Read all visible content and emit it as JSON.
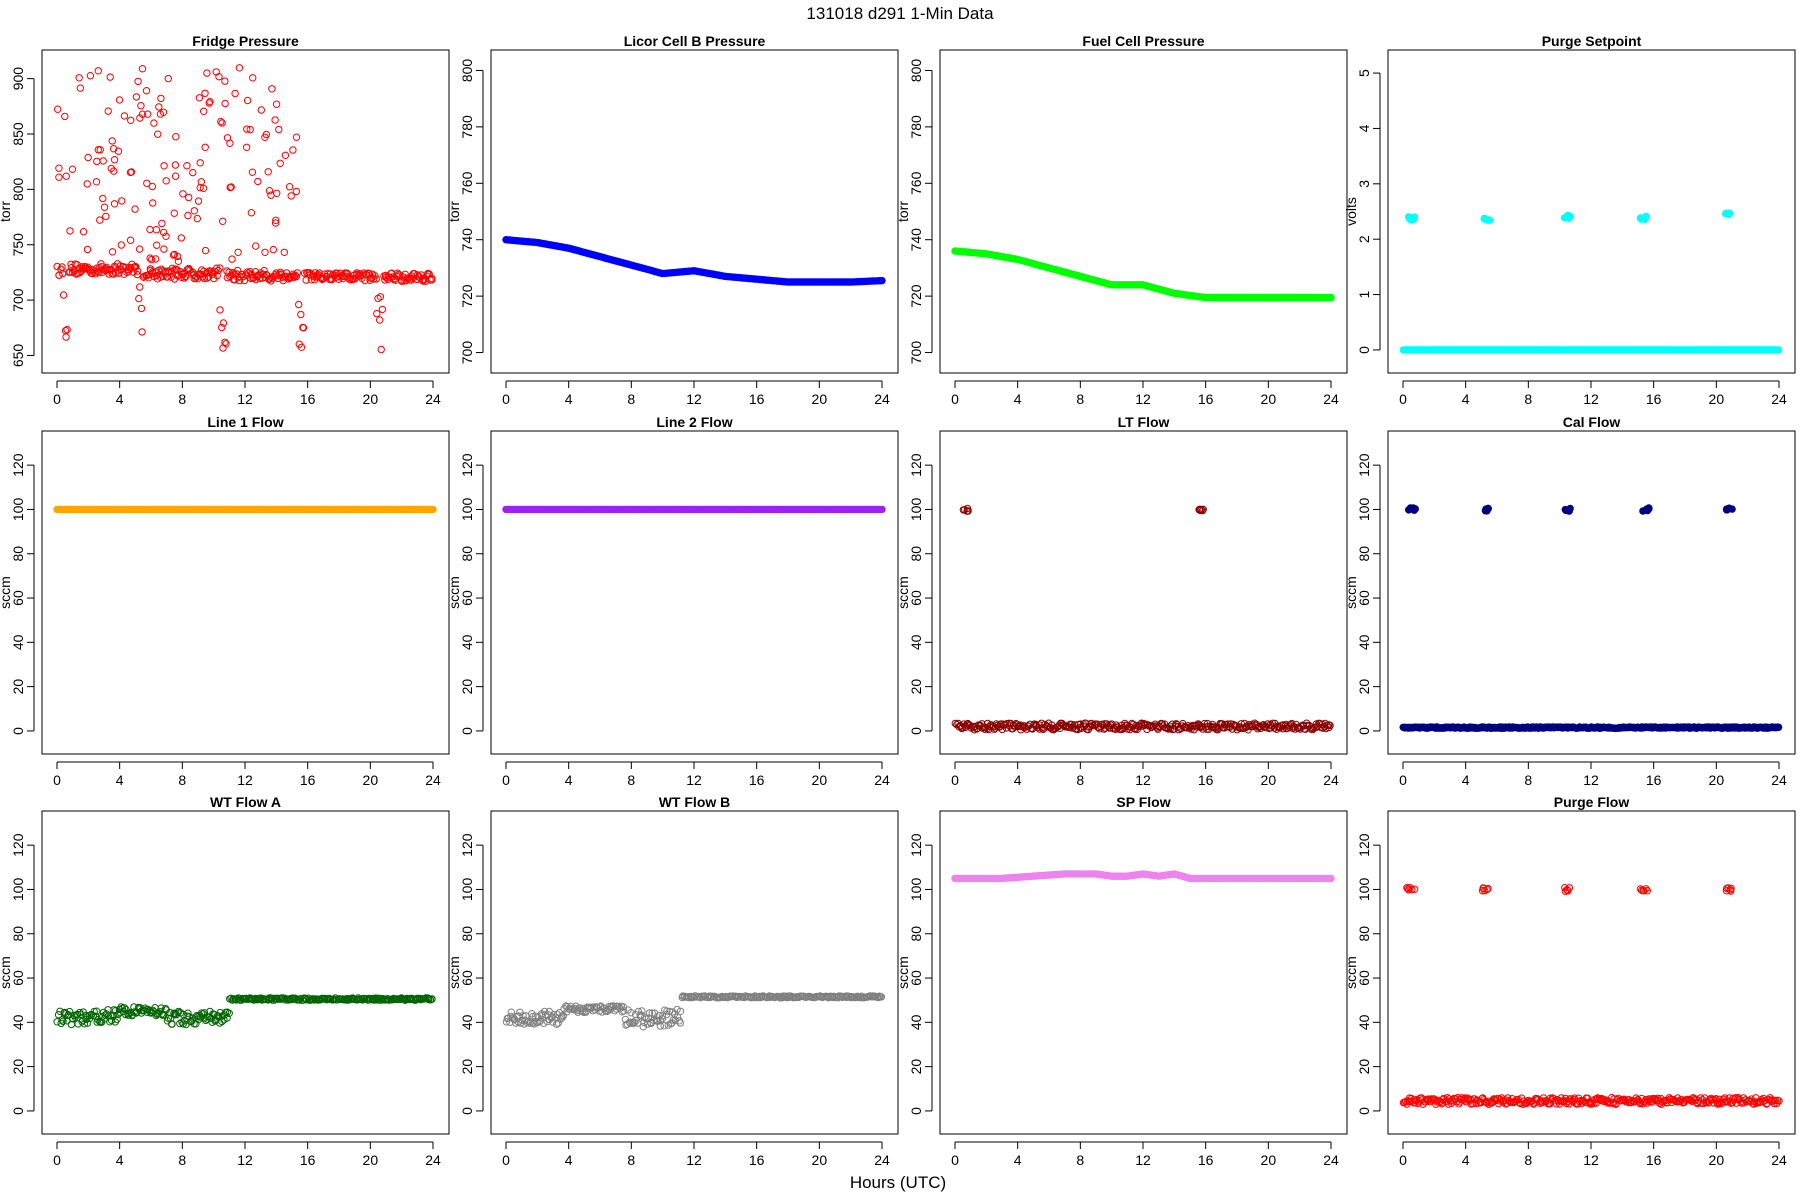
{
  "figure": {
    "title": "131018   d291   1-Min Data",
    "xlabel": "Hours (UTC)"
  },
  "chart_data": [
    {
      "type": "scatter",
      "title": "Fridge Pressure",
      "ylabel": "torr",
      "color": "#ff0000",
      "filled": false,
      "xlim": [
        0,
        24
      ],
      "xticks": [
        0,
        4,
        8,
        12,
        16,
        20,
        24
      ],
      "ylim": [
        645,
        915
      ],
      "yticks": [
        650,
        700,
        750,
        800,
        850,
        900
      ],
      "segments": [
        {
          "x0": 0,
          "x1": 0.4,
          "base": 727,
          "noise": 5
        },
        {
          "x0": 0.4,
          "x1": 0.7,
          "base": 690,
          "noise": 25
        },
        {
          "x0": 0.7,
          "x1": 5.2,
          "base": 728,
          "noise": 5
        },
        {
          "x0": 5.2,
          "x1": 5.5,
          "base": 690,
          "noise": 25
        },
        {
          "x0": 5.5,
          "x1": 10.4,
          "base": 724,
          "noise": 5
        },
        {
          "x0": 10.4,
          "x1": 10.8,
          "base": 680,
          "noise": 25
        },
        {
          "x0": 10.8,
          "x1": 15.4,
          "base": 722,
          "noise": 5
        },
        {
          "x0": 15.4,
          "x1": 15.8,
          "base": 680,
          "noise": 25
        },
        {
          "x0": 15.8,
          "x1": 20.4,
          "base": 721,
          "noise": 4
        },
        {
          "x0": 20.4,
          "x1": 20.8,
          "base": 680,
          "noise": 25
        },
        {
          "x0": 20.8,
          "x1": 24,
          "base": 721,
          "noise": 4
        }
      ],
      "scatter_cloud": {
        "x0": 0,
        "x1": 15.5,
        "ymin": 735,
        "ymax": 910
      }
    },
    {
      "type": "line",
      "title": "Licor Cell B Pressure",
      "ylabel": "torr",
      "color": "#0000ff",
      "filled": true,
      "xlim": [
        0,
        24
      ],
      "xticks": [
        0,
        4,
        8,
        12,
        16,
        20,
        24
      ],
      "ylim": [
        697,
        803
      ],
      "yticks": [
        700,
        720,
        740,
        760,
        780,
        800
      ],
      "x": [
        0,
        2,
        4,
        6,
        8,
        10,
        12,
        14,
        16,
        18,
        20,
        22,
        24
      ],
      "y": [
        740,
        739,
        737,
        734,
        731,
        728,
        729,
        727,
        726,
        725,
        725,
        725,
        725.5
      ]
    },
    {
      "type": "line",
      "title": "Fuel Cell Pressure",
      "ylabel": "torr",
      "color": "#00ff00",
      "filled": true,
      "xlim": [
        0,
        24
      ],
      "xticks": [
        0,
        4,
        8,
        12,
        16,
        20,
        24
      ],
      "ylim": [
        697,
        803
      ],
      "yticks": [
        700,
        720,
        740,
        760,
        780,
        800
      ],
      "x": [
        0,
        2,
        4,
        6,
        8,
        10,
        12,
        14,
        16,
        18,
        20,
        22,
        24
      ],
      "y": [
        736,
        735,
        733,
        730,
        727,
        724,
        724,
        721,
        719.5,
        719.5,
        719.5,
        719.5,
        719.5
      ]
    },
    {
      "type": "scatter",
      "title": "Purge Setpoint",
      "ylabel": "volts",
      "color": "#00ffff",
      "filled": true,
      "xlim": [
        0,
        24
      ],
      "xticks": [
        0,
        4,
        8,
        12,
        16,
        20,
        24
      ],
      "ylim": [
        -0.2,
        5.2
      ],
      "yticks": [
        0,
        1,
        2,
        3,
        4,
        5
      ],
      "segments": [
        {
          "x0": 0,
          "x1": 24,
          "base": 0,
          "noise": 0
        }
      ],
      "clusters": [
        {
          "x": 0.5,
          "y": 2.38
        },
        {
          "x": 5.3,
          "y": 2.36
        },
        {
          "x": 10.5,
          "y": 2.4
        },
        {
          "x": 15.4,
          "y": 2.38
        },
        {
          "x": 20.7,
          "y": 2.45
        }
      ]
    },
    {
      "type": "line",
      "title": "Line 1 Flow",
      "ylabel": "sccm",
      "color": "#ffa500",
      "filled": true,
      "xlim": [
        0,
        24
      ],
      "xticks": [
        0,
        4,
        8,
        12,
        16,
        20,
        24
      ],
      "ylim": [
        -5,
        130
      ],
      "yticks": [
        0,
        20,
        40,
        60,
        80,
        100,
        120
      ],
      "x": [
        0,
        24
      ],
      "y": [
        100,
        100
      ]
    },
    {
      "type": "line",
      "title": "Line 2 Flow",
      "ylabel": "sccm",
      "color": "#a020f0",
      "filled": true,
      "xlim": [
        0,
        24
      ],
      "xticks": [
        0,
        4,
        8,
        12,
        16,
        20,
        24
      ],
      "ylim": [
        -5,
        130
      ],
      "yticks": [
        0,
        20,
        40,
        60,
        80,
        100,
        120
      ],
      "x": [
        0,
        24
      ],
      "y": [
        100,
        100
      ]
    },
    {
      "type": "scatter",
      "title": "LT Flow",
      "ylabel": "sccm",
      "color": "#8b0000",
      "filled": false,
      "xlim": [
        0,
        24
      ],
      "xticks": [
        0,
        4,
        8,
        12,
        16,
        20,
        24
      ],
      "ylim": [
        -5,
        130
      ],
      "yticks": [
        0,
        20,
        40,
        60,
        80,
        100,
        120
      ],
      "segments": [
        {
          "x0": 0,
          "x1": 24,
          "base": 2,
          "noise": 1.5
        }
      ],
      "clusters": [
        {
          "x": 0.7,
          "y": 100
        },
        {
          "x": 15.7,
          "y": 100
        }
      ]
    },
    {
      "type": "scatter",
      "title": "Cal Flow",
      "ylabel": "sccm",
      "color": "#000080",
      "filled": true,
      "xlim": [
        0,
        24
      ],
      "xticks": [
        0,
        4,
        8,
        12,
        16,
        20,
        24
      ],
      "ylim": [
        -5,
        130
      ],
      "yticks": [
        0,
        20,
        40,
        60,
        80,
        100,
        120
      ],
      "segments": [
        {
          "x0": 0,
          "x1": 24,
          "base": 1.5,
          "noise": 0.3
        }
      ],
      "clusters": [
        {
          "x": 0.6,
          "y": 100
        },
        {
          "x": 5.4,
          "y": 100
        },
        {
          "x": 10.6,
          "y": 100
        },
        {
          "x": 15.5,
          "y": 100
        },
        {
          "x": 20.8,
          "y": 100
        }
      ]
    },
    {
      "type": "scatter",
      "title": "WT Flow A",
      "ylabel": "sccm",
      "color": "#006400",
      "filled": false,
      "xlim": [
        0,
        24
      ],
      "xticks": [
        0,
        4,
        8,
        12,
        16,
        20,
        24
      ],
      "ylim": [
        -5,
        130
      ],
      "yticks": [
        0,
        20,
        40,
        60,
        80,
        100,
        120
      ],
      "segments": [
        {
          "x0": 0,
          "x1": 2,
          "base": 42,
          "noise": 3
        },
        {
          "x0": 2,
          "x1": 4,
          "base": 43,
          "noise": 3
        },
        {
          "x0": 4,
          "x1": 7,
          "base": 45,
          "noise": 2
        },
        {
          "x0": 7,
          "x1": 11,
          "base": 42,
          "noise": 3
        },
        {
          "x0": 11,
          "x1": 24,
          "base": 50.5,
          "noise": 0.5
        }
      ]
    },
    {
      "type": "scatter",
      "title": "WT Flow B",
      "ylabel": "sccm",
      "color": "#808080",
      "filled": false,
      "xlim": [
        0,
        24
      ],
      "xticks": [
        0,
        4,
        8,
        12,
        16,
        20,
        24
      ],
      "ylim": [
        -5,
        130
      ],
      "yticks": [
        0,
        20,
        40,
        60,
        80,
        100,
        120
      ],
      "segments": [
        {
          "x0": 0,
          "x1": 3.7,
          "base": 42,
          "noise": 3
        },
        {
          "x0": 3.7,
          "x1": 7.5,
          "base": 46,
          "noise": 1.5
        },
        {
          "x0": 7.5,
          "x1": 11.2,
          "base": 42,
          "noise": 4
        },
        {
          "x0": 11.2,
          "x1": 24,
          "base": 51.5,
          "noise": 0.4
        }
      ]
    },
    {
      "type": "line",
      "title": "SP Flow",
      "ylabel": "sccm",
      "color": "#ee82ee",
      "filled": true,
      "xlim": [
        0,
        24
      ],
      "xticks": [
        0,
        4,
        8,
        12,
        16,
        20,
        24
      ],
      "ylim": [
        -5,
        130
      ],
      "yticks": [
        0,
        20,
        40,
        60,
        80,
        100,
        120
      ],
      "x": [
        0,
        3,
        5,
        7,
        9,
        10,
        11,
        12,
        13,
        14,
        15,
        18,
        21,
        24
      ],
      "y": [
        105,
        105,
        106,
        107,
        107,
        106,
        106,
        107,
        106,
        107,
        105,
        105,
        105,
        105
      ]
    },
    {
      "type": "scatter",
      "title": "Purge Flow",
      "ylabel": "sccm",
      "color": "#ff0000",
      "filled": false,
      "xlim": [
        0,
        24
      ],
      "xticks": [
        0,
        4,
        8,
        12,
        16,
        20,
        24
      ],
      "ylim": [
        -5,
        130
      ],
      "yticks": [
        0,
        20,
        40,
        60,
        80,
        100,
        120
      ],
      "segments": [
        {
          "x0": 0,
          "x1": 24,
          "base": 4.5,
          "noise": 1.5
        }
      ],
      "clusters": [
        {
          "x": 0.5,
          "y": 100
        },
        {
          "x": 5.3,
          "y": 100
        },
        {
          "x": 10.5,
          "y": 100
        },
        {
          "x": 15.4,
          "y": 100
        },
        {
          "x": 20.7,
          "y": 100
        }
      ]
    }
  ]
}
